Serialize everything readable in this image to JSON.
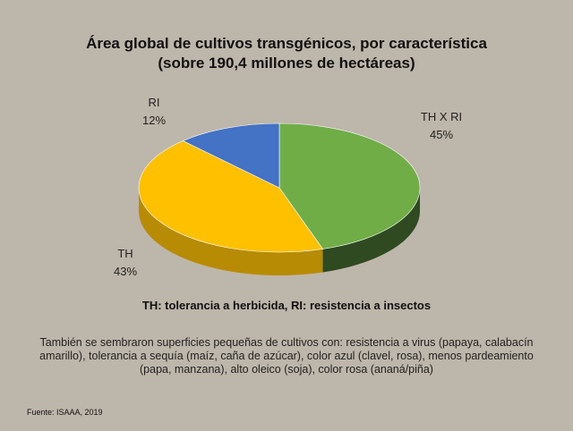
{
  "title_line1": "Área global de cultivos transgénicos, por característica",
  "title_line2": "(sobre 190,4 millones de hectáreas)",
  "chart_data": {
    "type": "pie",
    "categories": [
      "TH X RI",
      "TH",
      "RI"
    ],
    "values": [
      45,
      43,
      12
    ],
    "labels": [
      "45%",
      "43%",
      "12%"
    ],
    "colors": [
      "#70ad47",
      "#ffc000",
      "#4472c4"
    ],
    "side_colors": [
      "#2f4a20",
      "#b88b05",
      "#2c4a80"
    ],
    "style": "3d"
  },
  "legend_note": "TH: tolerancia a herbicida, RI: resistencia a insectos",
  "footnote": "También se sembraron superficies pequeñas de cultivos con: resistencia a virus (papaya, calabacín amarillo), tolerancia a sequía (maíz, caña de azúcar), color azul (clavel, rosa), menos pardeamiento (papa, manzana), alto oleico (soja), color rosa (ananá/piña)",
  "source": "Fuente: ISAAA, 2019"
}
